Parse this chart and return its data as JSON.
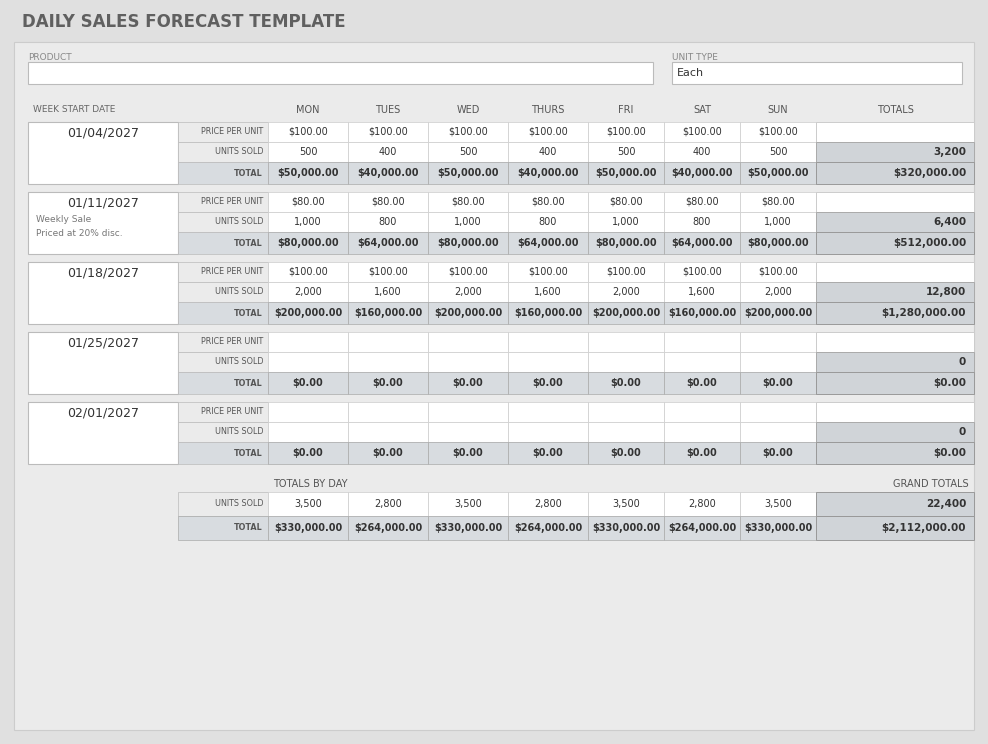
{
  "title": "DAILY SALES FORECAST TEMPLATE",
  "bg_outer": "#e0e0e0",
  "bg_panel": "#ebebeb",
  "white": "#ffffff",
  "cell_gray": "#d0d4d8",
  "total_row_bg": "#d8dce0",
  "header_cols": [
    "MON",
    "TUES",
    "WED",
    "THURS",
    "FRI",
    "SAT",
    "SUN",
    "TOTALS"
  ],
  "weeks": [
    {
      "date": "01/04/2027",
      "note": [],
      "price_per_unit": [
        "$100.00",
        "$100.00",
        "$100.00",
        "$100.00",
        "$100.00",
        "$100.00",
        "$100.00"
      ],
      "units_sold": [
        "500",
        "400",
        "500",
        "400",
        "500",
        "400",
        "500"
      ],
      "units_total": "3,200",
      "totals": [
        "$50,000.00",
        "$40,000.00",
        "$50,000.00",
        "$40,000.00",
        "$50,000.00",
        "$40,000.00",
        "$50,000.00"
      ],
      "grand_total": "$320,000.00"
    },
    {
      "date": "01/11/2027",
      "note": [
        "Weekly Sale",
        "Priced at 20% disc."
      ],
      "price_per_unit": [
        "$80.00",
        "$80.00",
        "$80.00",
        "$80.00",
        "$80.00",
        "$80.00",
        "$80.00"
      ],
      "units_sold": [
        "1,000",
        "800",
        "1,000",
        "800",
        "1,000",
        "800",
        "1,000"
      ],
      "units_total": "6,400",
      "totals": [
        "$80,000.00",
        "$64,000.00",
        "$80,000.00",
        "$64,000.00",
        "$80,000.00",
        "$64,000.00",
        "$80,000.00"
      ],
      "grand_total": "$512,000.00"
    },
    {
      "date": "01/18/2027",
      "note": [],
      "price_per_unit": [
        "$100.00",
        "$100.00",
        "$100.00",
        "$100.00",
        "$100.00",
        "$100.00",
        "$100.00"
      ],
      "units_sold": [
        "2,000",
        "1,600",
        "2,000",
        "1,600",
        "2,000",
        "1,600",
        "2,000"
      ],
      "units_total": "12,800",
      "totals": [
        "$200,000.00",
        "$160,000.00",
        "$200,000.00",
        "$160,000.00",
        "$200,000.00",
        "$160,000.00",
        "$200,000.00"
      ],
      "grand_total": "$1,280,000.00"
    },
    {
      "date": "01/25/2027",
      "note": [],
      "price_per_unit": [
        "",
        "",
        "",
        "",
        "",
        "",
        ""
      ],
      "units_sold": [
        "",
        "",
        "",
        "",
        "",
        "",
        ""
      ],
      "units_total": "0",
      "totals": [
        "$0.00",
        "$0.00",
        "$0.00",
        "$0.00",
        "$0.00",
        "$0.00",
        "$0.00"
      ],
      "grand_total": "$0.00"
    },
    {
      "date": "02/01/2027",
      "note": [],
      "price_per_unit": [
        "",
        "",
        "",
        "",
        "",
        "",
        ""
      ],
      "units_sold": [
        "",
        "",
        "",
        "",
        "",
        "",
        ""
      ],
      "units_total": "0",
      "totals": [
        "$0.00",
        "$0.00",
        "$0.00",
        "$0.00",
        "$0.00",
        "$0.00",
        "$0.00"
      ],
      "grand_total": "$0.00"
    }
  ],
  "totals_by_day": {
    "units_sold": [
      "3,500",
      "2,800",
      "3,500",
      "2,800",
      "3,500",
      "2,800",
      "3,500"
    ],
    "units_grand": "22,400",
    "totals": [
      "$330,000.00",
      "$264,000.00",
      "$330,000.00",
      "$264,000.00",
      "$330,000.00",
      "$264,000.00",
      "$330,000.00"
    ],
    "grand_total": "$2,112,000.00"
  }
}
